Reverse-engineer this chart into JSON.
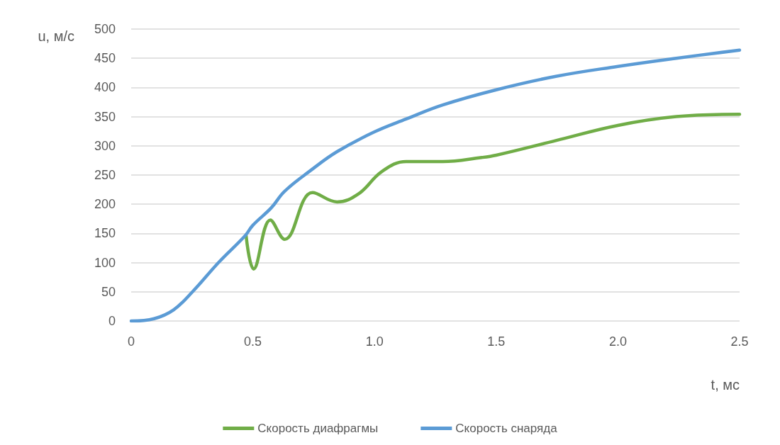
{
  "chart_data": {
    "type": "line",
    "xlabel": "t, мс",
    "ylabel": "u, м/с",
    "xlim": [
      0,
      2.5
    ],
    "xticks": [
      0,
      0.5,
      {
        "value": 1,
        "label": "1.0"
      },
      1.5,
      {
        "value": 2,
        "label": "2.0"
      },
      2.5
    ],
    "ylim": [
      0,
      500
    ],
    "yticks": [
      0,
      50,
      100,
      150,
      200,
      250,
      300,
      350,
      400,
      450,
      500
    ],
    "grid": "y",
    "legend": "bottom",
    "marker": "none",
    "line_style": "solid",
    "series": [
      {
        "name": "Скорость диафрагмы",
        "color": "#70ad47",
        "x": [
          0.472,
          0.503,
          0.572,
          0.631,
          0.745,
          0.846,
          0.935,
          1.03,
          1.13,
          1.28,
          1.44,
          1.5,
          1.745,
          2.0,
          2.24,
          2.5
        ],
        "values": [
          147,
          89,
          173,
          140,
          220,
          204,
          218,
          256,
          273,
          273,
          280,
          284,
          309,
          335,
          350,
          354
        ]
      },
      {
        "name": "Скорость снаряда",
        "color": "#5b9bd5",
        "x": [
          0,
          0.094,
          0.174,
          0.254,
          0.361,
          0.468,
          0.5,
          0.576,
          0.63,
          0.738,
          0.846,
          1.0,
          1.13,
          1.28,
          1.5,
          1.745,
          2.0,
          2.24,
          2.5
        ],
        "values": [
          0,
          4,
          19,
          51,
          101,
          146,
          164,
          194,
          222,
          258,
          290,
          324,
          346,
          370,
          396,
          419,
          436,
          450,
          464
        ]
      }
    ]
  }
}
